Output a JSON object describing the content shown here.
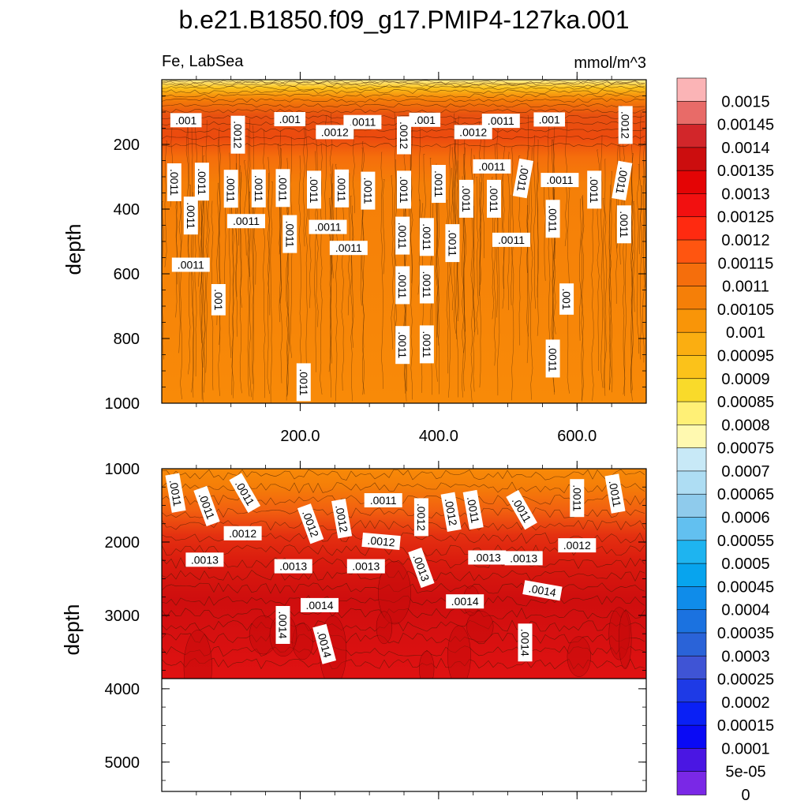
{
  "title": "b.e21.B1850.f09_g17.PMIP4-127ka.001",
  "subtitle_left": "Fe, LabSea",
  "subtitle_right": "mmol/m^3",
  "chart_data": {
    "type": "contour",
    "variable": "Fe",
    "region": "LabSea",
    "units": "mmol/m^3",
    "x_ticks": [
      "200.0",
      "400.0",
      "600.0"
    ],
    "x_tick_values": [
      200,
      400,
      600
    ],
    "x_range": [
      0,
      700
    ],
    "panels": [
      {
        "ylabel": "depth",
        "ylim": [
          0,
          1000
        ],
        "y_ticks": [
          "200",
          "400",
          "600",
          "800",
          "1000"
        ],
        "y_tick_values": [
          200,
          400,
          600,
          800,
          1000
        ],
        "contour_labels": [
          {
            "text": ".001",
            "x": 35,
            "y": 125,
            "angle": 0
          },
          {
            "text": ".001",
            "x": 185,
            "y": 122,
            "angle": 0
          },
          {
            "text": ".0011",
            "x": 290,
            "y": 131,
            "angle": 0
          },
          {
            "text": ".001",
            "x": 380,
            "y": 124,
            "angle": 0
          },
          {
            "text": ".0011",
            "x": 490,
            "y": 127,
            "angle": 0
          },
          {
            "text": ".001",
            "x": 560,
            "y": 123,
            "angle": 0
          },
          {
            "text": ".0012",
            "x": 670,
            "y": 140,
            "angle": 90
          },
          {
            "text": ".0012",
            "x": 110,
            "y": 170,
            "angle": 90
          },
          {
            "text": ".0012",
            "x": 250,
            "y": 162,
            "angle": 0
          },
          {
            "text": ".0012",
            "x": 350,
            "y": 172,
            "angle": 90
          },
          {
            "text": ".0012",
            "x": 450,
            "y": 162,
            "angle": 0
          },
          {
            "text": ".0011",
            "x": 18,
            "y": 317,
            "angle": 90
          },
          {
            "text": ".0011",
            "x": 58,
            "y": 315,
            "angle": 90
          },
          {
            "text": ".0011",
            "x": 100,
            "y": 337,
            "angle": 90
          },
          {
            "text": ".0011",
            "x": 140,
            "y": 336,
            "angle": 90
          },
          {
            "text": ".0011",
            "x": 175,
            "y": 335,
            "angle": 90
          },
          {
            "text": ".0011",
            "x": 220,
            "y": 340,
            "angle": 90
          },
          {
            "text": ".0011",
            "x": 260,
            "y": 336,
            "angle": 90
          },
          {
            "text": ".0011",
            "x": 298,
            "y": 343,
            "angle": 90
          },
          {
            "text": ".0011",
            "x": 350,
            "y": 340,
            "angle": 90
          },
          {
            "text": ".0011",
            "x": 400,
            "y": 322,
            "angle": 90
          },
          {
            "text": ".0011",
            "x": 440,
            "y": 368,
            "angle": 90
          },
          {
            "text": ".0011",
            "x": 477,
            "y": 268,
            "angle": 0
          },
          {
            "text": ".0011",
            "x": 480,
            "y": 368,
            "angle": 90
          },
          {
            "text": ".0011",
            "x": 522,
            "y": 305,
            "angle": 100
          },
          {
            "text": ".0011",
            "x": 575,
            "y": 310,
            "angle": 0
          },
          {
            "text": ".0011",
            "x": 625,
            "y": 340,
            "angle": 90
          },
          {
            "text": ".0011",
            "x": 665,
            "y": 312,
            "angle": 100
          },
          {
            "text": ".0011",
            "x": 42,
            "y": 420,
            "angle": 90
          },
          {
            "text": ".0011",
            "x": 122,
            "y": 437,
            "angle": 0
          },
          {
            "text": ".0011",
            "x": 185,
            "y": 477,
            "angle": 90
          },
          {
            "text": ".0011",
            "x": 240,
            "y": 455,
            "angle": 0
          },
          {
            "text": ".0011",
            "x": 270,
            "y": 520,
            "angle": 0
          },
          {
            "text": ".0011",
            "x": 348,
            "y": 482,
            "angle": 90
          },
          {
            "text": ".0011",
            "x": 383,
            "y": 486,
            "angle": 90
          },
          {
            "text": ".0011",
            "x": 420,
            "y": 505,
            "angle": 90
          },
          {
            "text": ".0011",
            "x": 505,
            "y": 495,
            "angle": 0
          },
          {
            "text": ".0011",
            "x": 565,
            "y": 430,
            "angle": 90
          },
          {
            "text": ".0011",
            "x": 668,
            "y": 447,
            "angle": 90
          },
          {
            "text": ".0011",
            "x": 42,
            "y": 572,
            "angle": 0
          },
          {
            "text": ".0011",
            "x": 348,
            "y": 635,
            "angle": 90
          },
          {
            "text": ".0011",
            "x": 383,
            "y": 633,
            "angle": 90
          },
          {
            "text": ".001",
            "x": 82,
            "y": 680,
            "angle": 90
          },
          {
            "text": ".001",
            "x": 585,
            "y": 678,
            "angle": 90
          },
          {
            "text": ".0011",
            "x": 348,
            "y": 820,
            "angle": 90
          },
          {
            "text": ".0011",
            "x": 383,
            "y": 818,
            "angle": 90
          },
          {
            "text": ".0011",
            "x": 565,
            "y": 862,
            "angle": 90
          },
          {
            "text": ".0011",
            "x": 205,
            "y": 935,
            "angle": 90
          }
        ]
      },
      {
        "ylabel": "depth",
        "ylim": [
          1000,
          5400
        ],
        "y_ticks": [
          "1000",
          "2000",
          "3000",
          "4000",
          "5000"
        ],
        "y_tick_values": [
          1000,
          2000,
          3000,
          4000,
          5000
        ],
        "data_bottom_depth": 3850,
        "contour_labels": [
          {
            "text": ".0011",
            "x": 20,
            "y": 1330,
            "angle": 80
          },
          {
            "text": ".0011",
            "x": 65,
            "y": 1510,
            "angle": 70
          },
          {
            "text": ".0011",
            "x": 120,
            "y": 1330,
            "angle": 60
          },
          {
            "text": ".0011",
            "x": 320,
            "y": 1430,
            "angle": 0
          },
          {
            "text": ".0011",
            "x": 450,
            "y": 1560,
            "angle": 80
          },
          {
            "text": ".0011",
            "x": 520,
            "y": 1560,
            "angle": 60
          },
          {
            "text": ".0011",
            "x": 600,
            "y": 1400,
            "angle": 90
          },
          {
            "text": ".0011",
            "x": 655,
            "y": 1340,
            "angle": 80
          },
          {
            "text": ".0012",
            "x": 117,
            "y": 1880,
            "angle": 0
          },
          {
            "text": ".0012",
            "x": 215,
            "y": 1750,
            "angle": 70
          },
          {
            "text": ".0012",
            "x": 260,
            "y": 1680,
            "angle": 80
          },
          {
            "text": ".0012",
            "x": 317,
            "y": 1990,
            "angle": 5
          },
          {
            "text": ".0012",
            "x": 375,
            "y": 1660,
            "angle": 90
          },
          {
            "text": ".0012",
            "x": 418,
            "y": 1590,
            "angle": 80
          },
          {
            "text": ".0012",
            "x": 600,
            "y": 2045,
            "angle": 0
          },
          {
            "text": ".0013",
            "x": 62,
            "y": 2240,
            "angle": 0
          },
          {
            "text": ".0013",
            "x": 190,
            "y": 2330,
            "angle": 0
          },
          {
            "text": ".0013",
            "x": 295,
            "y": 2330,
            "angle": 0
          },
          {
            "text": ".0013",
            "x": 375,
            "y": 2350,
            "angle": 70
          },
          {
            "text": ".0013",
            "x": 470,
            "y": 2210,
            "angle": 0
          },
          {
            "text": ".0013",
            "x": 523,
            "y": 2220,
            "angle": 0
          },
          {
            "text": ".0014",
            "x": 175,
            "y": 3130,
            "angle": 90
          },
          {
            "text": ".0014",
            "x": 228,
            "y": 2860,
            "angle": 0
          },
          {
            "text": ".0014",
            "x": 235,
            "y": 3390,
            "angle": 75
          },
          {
            "text": ".0014",
            "x": 438,
            "y": 2810,
            "angle": 0
          },
          {
            "text": ".0014",
            "x": 550,
            "y": 2660,
            "angle": 10
          },
          {
            "text": ".0014",
            "x": 525,
            "y": 3370,
            "angle": 90
          }
        ]
      }
    ],
    "colorbar": {
      "levels": [
        "0.0015",
        "0.00145",
        "0.0014",
        "0.00135",
        "0.0013",
        "0.00125",
        "0.0012",
        "0.00115",
        "0.0011",
        "0.00105",
        "0.001",
        "0.00095",
        "0.0009",
        "0.00085",
        "0.0008",
        "0.00075",
        "0.0007",
        "0.00065",
        "0.0006",
        "0.00055",
        "0.0005",
        "0.00045",
        "0.0004",
        "0.00035",
        "0.0003",
        "0.00025",
        "0.0002",
        "0.00015",
        "0.0001",
        "5e-05",
        "0"
      ],
      "colors": [
        "#FBB4B6",
        "#E86B68",
        "#D2262A",
        "#CC0D0E",
        "#E40405",
        "#F21010",
        "#FF2A10",
        "#FF5510",
        "#F56E0C",
        "#F57F08",
        "#F99508",
        "#FBAE11",
        "#FBC21A",
        "#F9DA2A",
        "#FFF076",
        "#FFF9B0",
        "#C8E9F7",
        "#AEDDF3",
        "#8FCBEC",
        "#62C0F0",
        "#1EB4F0",
        "#07A4EE",
        "#0F8CEA",
        "#1B72E0",
        "#2A63D8",
        "#3F54D5",
        "#1E3AE6",
        "#0A20F5",
        "#0A0AF5",
        "#4A16E3",
        "#7A28E6"
      ]
    }
  }
}
